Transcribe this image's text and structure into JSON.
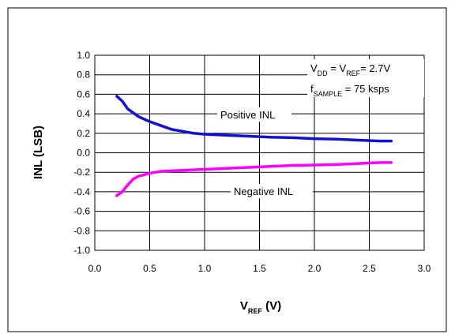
{
  "chart_data": {
    "type": "line",
    "title": "",
    "xlabel": {
      "main": "V",
      "sub": "REF",
      "unit": " (V)"
    },
    "ylabel": "INL (LSB)",
    "xlim": [
      0.0,
      3.0
    ],
    "ylim": [
      -1.0,
      1.0
    ],
    "x_ticks": [
      "0.0",
      "0.5",
      "1.0",
      "1.5",
      "2.0",
      "2.5",
      "3.0"
    ],
    "y_ticks": [
      "1.0",
      "0.8",
      "0.6",
      "0.4",
      "0.2",
      "0.0",
      "-0.2",
      "-0.4",
      "-0.6",
      "-0.8",
      "-1.0"
    ],
    "grid": true,
    "series": [
      {
        "name": "Positive INL",
        "color": "#1010d8",
        "points": [
          [
            0.2,
            0.58
          ],
          [
            0.25,
            0.53
          ],
          [
            0.3,
            0.45
          ],
          [
            0.4,
            0.37
          ],
          [
            0.5,
            0.32
          ],
          [
            0.6,
            0.28
          ],
          [
            0.7,
            0.24
          ],
          [
            0.8,
            0.22
          ],
          [
            0.9,
            0.2
          ],
          [
            1.0,
            0.19
          ],
          [
            1.2,
            0.18
          ],
          [
            1.4,
            0.17
          ],
          [
            1.6,
            0.16
          ],
          [
            1.8,
            0.155
          ],
          [
            2.0,
            0.145
          ],
          [
            2.2,
            0.14
          ],
          [
            2.4,
            0.13
          ],
          [
            2.6,
            0.12
          ],
          [
            2.7,
            0.12
          ]
        ]
      },
      {
        "name": "Negative INL",
        "color": "#ff00ff",
        "points": [
          [
            0.2,
            -0.44
          ],
          [
            0.25,
            -0.4
          ],
          [
            0.3,
            -0.33
          ],
          [
            0.35,
            -0.27
          ],
          [
            0.4,
            -0.24
          ],
          [
            0.5,
            -0.21
          ],
          [
            0.6,
            -0.19
          ],
          [
            0.8,
            -0.18
          ],
          [
            1.0,
            -0.17
          ],
          [
            1.2,
            -0.16
          ],
          [
            1.4,
            -0.15
          ],
          [
            1.6,
            -0.14
          ],
          [
            1.8,
            -0.13
          ],
          [
            2.0,
            -0.125
          ],
          [
            2.2,
            -0.12
          ],
          [
            2.4,
            -0.11
          ],
          [
            2.6,
            -0.1
          ],
          [
            2.7,
            -0.1
          ]
        ]
      }
    ],
    "annotations": {
      "conditions_line1": {
        "v": "V",
        "dd": "DD",
        "eq": " = V",
        "ref": "REF",
        "val": "= 2.7V"
      },
      "conditions_line2": {
        "f": "f",
        "sample": "SAMPLE",
        "val": " = 75 ksps"
      }
    }
  }
}
